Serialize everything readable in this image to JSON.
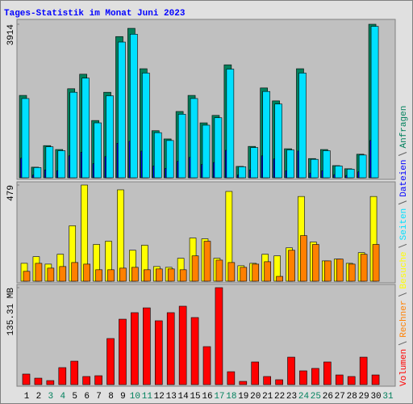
{
  "title": "Tages-Statistik im Monat Juni 2023",
  "chart_data": [
    {
      "type": "bar",
      "series": [
        {
          "name": "Anfragen",
          "color": "#00805c",
          "values": [
            2100,
            270,
            820,
            720,
            2270,
            2640,
            1460,
            2180,
            3600,
            3810,
            2780,
            1200,
            990,
            1690,
            2100,
            1400,
            1590,
            2880,
            290,
            800,
            2290,
            1960,
            740,
            2780,
            490,
            720,
            310,
            230,
            600,
            3914,
            null
          ]
        },
        {
          "name": "Dateien",
          "color": "#0000ff",
          "values": [
            500,
            70,
            200,
            180,
            560,
            650,
            360,
            540,
            880,
            930,
            680,
            300,
            240,
            420,
            520,
            340,
            390,
            700,
            70,
            200,
            560,
            480,
            180,
            680,
            120,
            180,
            80,
            60,
            150,
            950,
            null
          ]
        },
        {
          "name": "Seiten",
          "color": "#00e0ff",
          "values": [
            2020,
            260,
            790,
            690,
            2180,
            2540,
            1400,
            2090,
            3460,
            3660,
            2670,
            1150,
            950,
            1620,
            2020,
            1340,
            1530,
            2770,
            280,
            770,
            2200,
            1880,
            710,
            2670,
            470,
            690,
            300,
            220,
            580,
            3860,
            null
          ]
        }
      ],
      "ylim": [
        0,
        3914
      ],
      "yticks": [
        3914
      ]
    },
    {
      "type": "bar",
      "series": [
        {
          "name": "Besuche",
          "color": "#ffff00",
          "values": [
            89,
            122,
            85,
            134,
            276,
            479,
            183,
            199,
            455,
            154,
            179,
            73,
            69,
            114,
            215,
            211,
            114,
            447,
            77,
            89,
            134,
            126,
            166,
            422,
            195,
            101,
            110,
            89,
            142,
            422,
            null
          ]
        },
        {
          "name": "Rechner",
          "color": "#ff8000",
          "values": [
            49,
            89,
            65,
            73,
            93,
            85,
            57,
            57,
            65,
            69,
            57,
            61,
            61,
            57,
            126,
            199,
            105,
            93,
            69,
            85,
            97,
            24,
            154,
            227,
            183,
            101,
            110,
            85,
            134,
            183,
            null
          ]
        }
      ],
      "ylim": [
        0,
        479
      ],
      "yticks": [
        479
      ]
    },
    {
      "type": "bar",
      "series": [
        {
          "name": "Volumen",
          "color": "#ff0000",
          "values": [
            14.7,
            9.0,
            5.6,
            23.7,
            32.7,
            11.3,
            12.4,
            64.3,
            91.3,
            100.4,
            107.1,
            89.1,
            100.4,
            109.4,
            93.6,
            53.0,
            135.31,
            18.0,
            4.5,
            31.6,
            11.3,
            6.8,
            38.3,
            19.2,
            22.6,
            31.6,
            13.5,
            11.3,
            38.3,
            13.5,
            null
          ]
        }
      ],
      "ylim": [
        0,
        135.31
      ],
      "yticks": [
        {
          "value": 135.31,
          "label": "135.31 MB"
        }
      ],
      "categories": [
        "1",
        "2",
        "3",
        "4",
        "5",
        "6",
        "7",
        "8",
        "9",
        "10",
        "11",
        "12",
        "13",
        "14",
        "15",
        "16",
        "17",
        "18",
        "19",
        "20",
        "21",
        "22",
        "23",
        "24",
        "25",
        "26",
        "27",
        "28",
        "29",
        "30",
        "31"
      ],
      "category_colors": [
        "#000000",
        "#000000",
        "#00805c",
        "#00805c",
        "#000000",
        "#000000",
        "#000000",
        "#000000",
        "#000000",
        "#00805c",
        "#00805c",
        "#000000",
        "#000000",
        "#000000",
        "#000000",
        "#000000",
        "#00805c",
        "#00805c",
        "#000000",
        "#000000",
        "#000000",
        "#000000",
        "#000000",
        "#00805c",
        "#00805c",
        "#000000",
        "#000000",
        "#000000",
        "#000000",
        "#000000",
        "#00805c"
      ]
    }
  ]
}
